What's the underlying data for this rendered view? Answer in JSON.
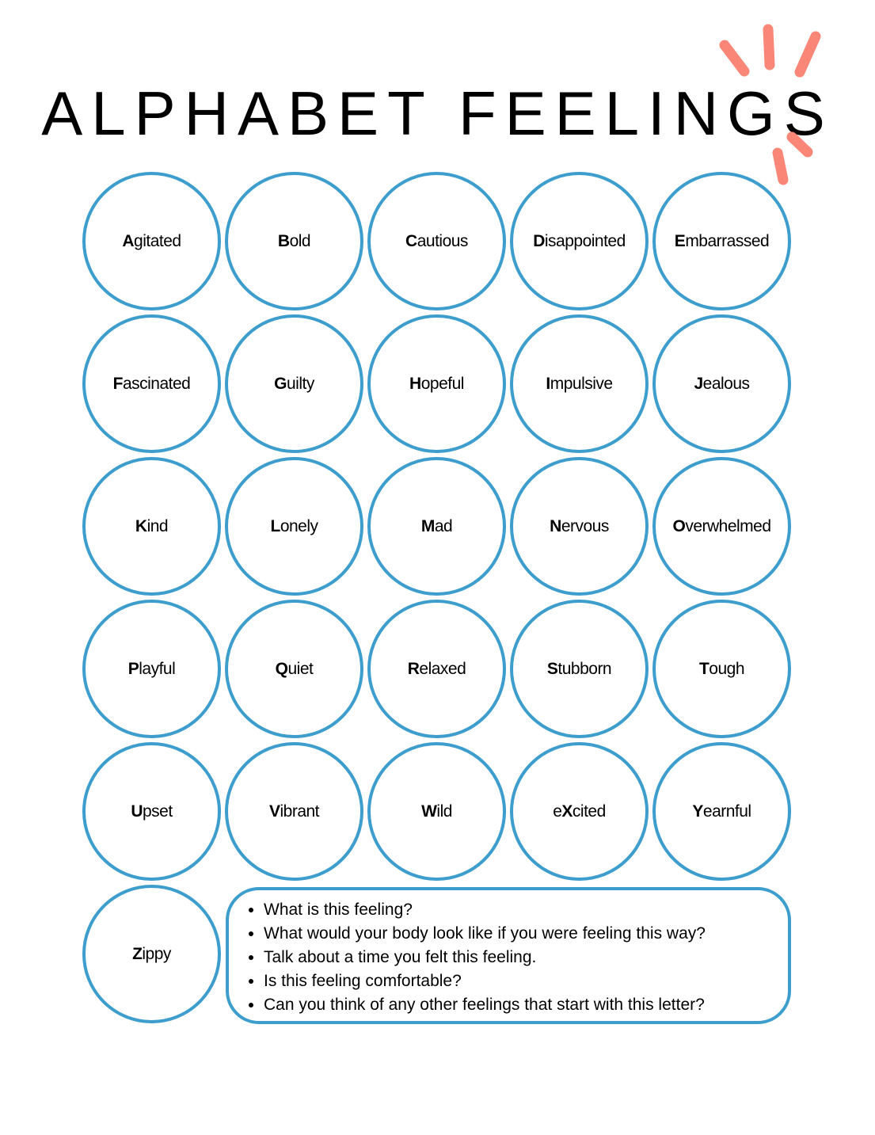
{
  "title": "ALPHABET FEELINGS",
  "colors": {
    "circle_stroke": "#3d9dcd",
    "accent_rays": "#f98676",
    "text": "#000000"
  },
  "feelings": [
    {
      "pre": "",
      "bold": "A",
      "rest": "gitated"
    },
    {
      "pre": "",
      "bold": "B",
      "rest": "old"
    },
    {
      "pre": "",
      "bold": "C",
      "rest": "autious"
    },
    {
      "pre": "",
      "bold": "D",
      "rest": "isappointed"
    },
    {
      "pre": "",
      "bold": "E",
      "rest": "mbarrassed"
    },
    {
      "pre": "",
      "bold": "F",
      "rest": "ascinated"
    },
    {
      "pre": "",
      "bold": "G",
      "rest": "uilty"
    },
    {
      "pre": "",
      "bold": "H",
      "rest": "opeful"
    },
    {
      "pre": "",
      "bold": "I",
      "rest": "mpulsive"
    },
    {
      "pre": "",
      "bold": "J",
      "rest": "ealous"
    },
    {
      "pre": "",
      "bold": "K",
      "rest": "ind"
    },
    {
      "pre": "",
      "bold": "L",
      "rest": "onely"
    },
    {
      "pre": "",
      "bold": "M",
      "rest": "ad"
    },
    {
      "pre": "",
      "bold": "N",
      "rest": "ervous"
    },
    {
      "pre": "",
      "bold": "O",
      "rest": "verwhelmed"
    },
    {
      "pre": "",
      "bold": "P",
      "rest": "layful"
    },
    {
      "pre": "",
      "bold": "Q",
      "rest": "uiet"
    },
    {
      "pre": "",
      "bold": "R",
      "rest": "elaxed"
    },
    {
      "pre": "",
      "bold": "S",
      "rest": "tubborn"
    },
    {
      "pre": "",
      "bold": "T",
      "rest": "ough"
    },
    {
      "pre": "",
      "bold": "U",
      "rest": "pset"
    },
    {
      "pre": "",
      "bold": "V",
      "rest": "ibrant"
    },
    {
      "pre": "",
      "bold": "W",
      "rest": "ild"
    },
    {
      "pre": "e",
      "bold": "X",
      "rest": "cited"
    },
    {
      "pre": "",
      "bold": "Y",
      "rest": "earnful"
    },
    {
      "pre": "",
      "bold": "Z",
      "rest": "ippy"
    }
  ],
  "prompts": [
    "What is this feeling?",
    "What would your body look like if you were feeling this way?",
    "Talk about a time you felt this feeling.",
    "Is this feeling comfortable?",
    "Can you think of any other feelings that start with this letter?"
  ]
}
